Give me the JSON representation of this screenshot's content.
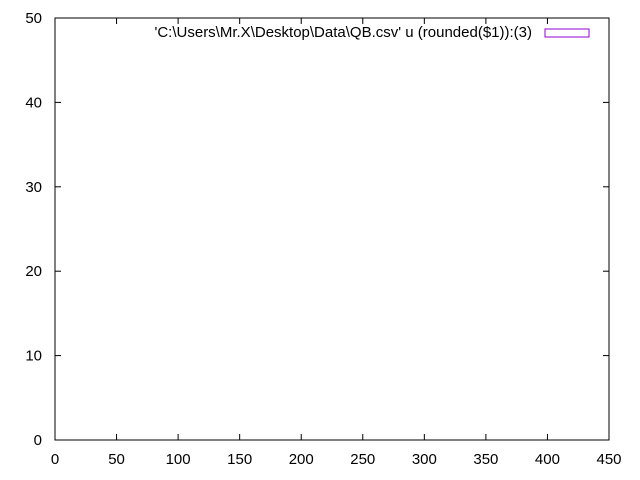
{
  "chart_data": {
    "type": "bar",
    "title": "",
    "xlabel": "",
    "ylabel": "",
    "xlim": [
      0,
      450
    ],
    "ylim": [
      0,
      50
    ],
    "x_ticks": [
      0,
      50,
      100,
      150,
      200,
      250,
      300,
      350,
      400,
      450
    ],
    "y_ticks": [
      0,
      10,
      20,
      30,
      40,
      50
    ],
    "x_tick_labels": [
      "0",
      "50",
      "100",
      "150",
      "200",
      "250",
      "300",
      "350",
      "400",
      "450"
    ],
    "y_tick_labels": [
      "0",
      "10",
      "20",
      "30",
      "40",
      "50"
    ],
    "series": [
      {
        "name": "'C:\\Users\\Mr.X\\Desktop\\Data\\QB.csv' u (rounded($1)):(3)",
        "x": [],
        "values": []
      }
    ],
    "grid": false,
    "legend_position": "top-right",
    "colors": {
      "axis": "#000000",
      "series": "#9400d3",
      "background": "#ffffff"
    }
  }
}
